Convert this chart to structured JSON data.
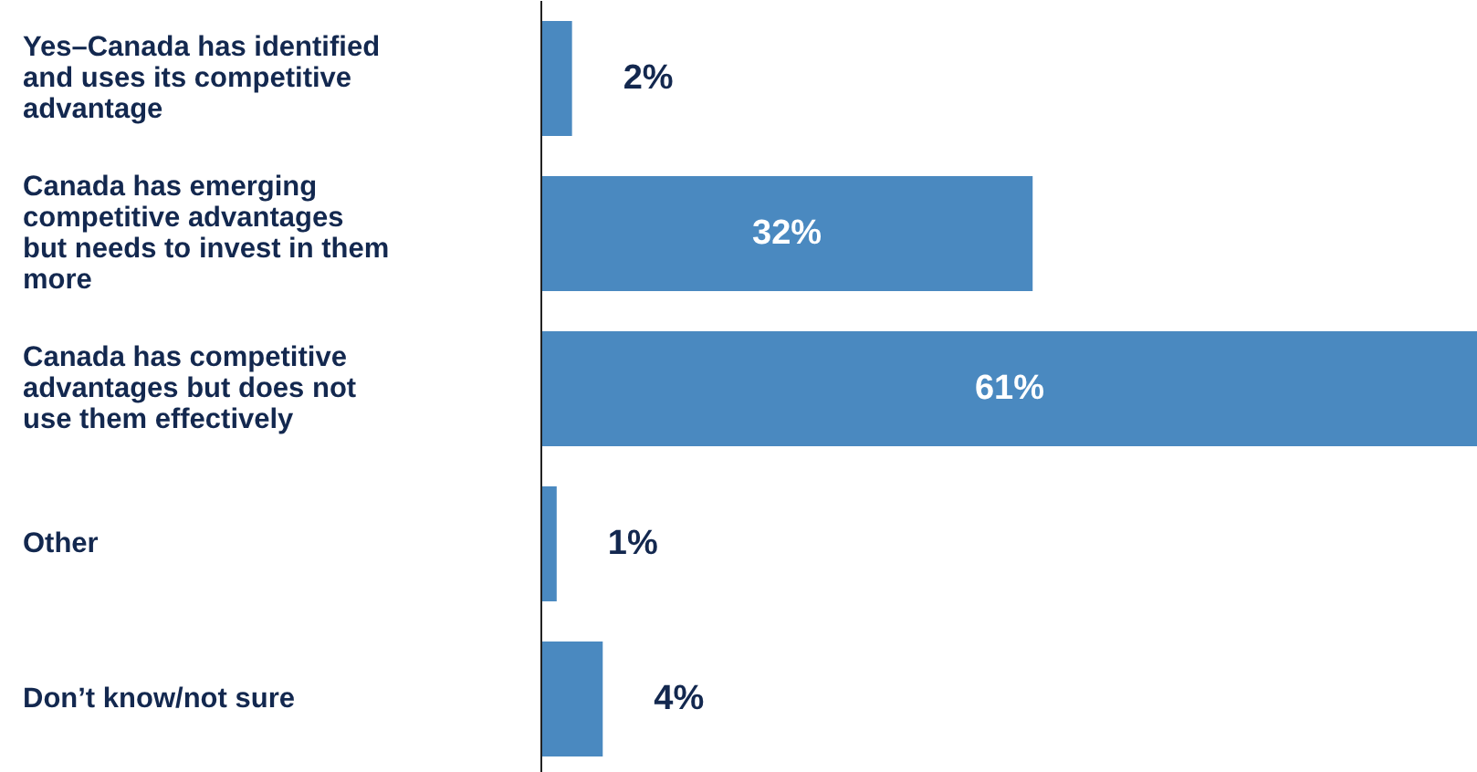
{
  "chart_data": {
    "type": "bar",
    "orientation": "horizontal",
    "categories": [
      "Yes–Canada has identified\nand uses its competitive\nadvantage",
      "Canada has emerging\ncompetitive advantages\nbut needs to invest in them\nmore",
      "Canada has competitive\nadvantages but does not\nuse them effectively",
      "Other",
      "Don’t know/not sure"
    ],
    "values": [
      2,
      32,
      61,
      1,
      4
    ],
    "value_labels": [
      "2%",
      "32%",
      "61%",
      "1%",
      "4%"
    ],
    "color": "#4a89c0"
  }
}
